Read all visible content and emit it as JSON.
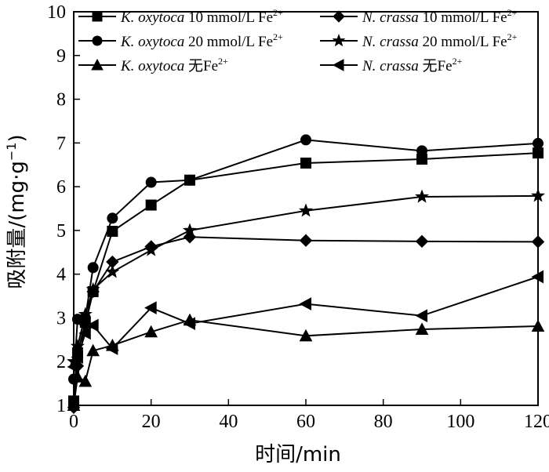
{
  "chart_data": {
    "type": "line",
    "xlabel": "时间/min",
    "ylabel": "吸附量/(mg·g⁻¹)",
    "xlim": [
      0,
      120
    ],
    "ylim": [
      1,
      10
    ],
    "x_ticks": [
      0,
      20,
      40,
      60,
      80,
      100,
      120
    ],
    "y_ticks": [
      1,
      2,
      3,
      4,
      5,
      6,
      7,
      8,
      9,
      10
    ],
    "grid": false,
    "legend_position": "top-left",
    "series": [
      {
        "name": "K. oxytoca 10 mmol/L Fe²⁺",
        "marker": "square",
        "x": [
          0,
          1,
          3,
          5,
          10,
          20,
          30,
          60,
          90,
          120
        ],
        "y": [
          1.1,
          2.2,
          2.9,
          3.6,
          4.98,
          5.58,
          6.15,
          6.54,
          6.63,
          6.77
        ]
      },
      {
        "name": "K. oxytoca 20 mmol/L Fe²⁺",
        "marker": "circle",
        "x": [
          0,
          1,
          3,
          5,
          10,
          20,
          30,
          60,
          90,
          120
        ],
        "y": [
          1.6,
          2.97,
          3.0,
          4.15,
          5.28,
          6.1,
          6.15,
          7.07,
          6.82,
          6.99
        ]
      },
      {
        "name": "K. oxytoca 无Fe²⁺",
        "marker": "triangle-up",
        "x": [
          0,
          1,
          3,
          5,
          10,
          20,
          30,
          60,
          90,
          120
        ],
        "y": [
          1.0,
          1.65,
          1.55,
          2.25,
          2.37,
          2.68,
          2.95,
          2.59,
          2.74,
          2.81
        ]
      },
      {
        "name": "N. crassa 10 mmol/L Fe²⁺",
        "marker": "diamond",
        "x": [
          0,
          1,
          3,
          5,
          10,
          20,
          30,
          60,
          90,
          120
        ],
        "y": [
          0.95,
          1.9,
          2.85,
          3.6,
          4.28,
          4.63,
          4.85,
          4.77,
          4.75,
          4.74
        ]
      },
      {
        "name": "N. crassa 20 mmol/L Fe²⁺",
        "marker": "star",
        "x": [
          0,
          1,
          3,
          5,
          10,
          20,
          30,
          60,
          90,
          120
        ],
        "y": [
          2.0,
          2.35,
          3.08,
          3.65,
          4.05,
          4.55,
          5.0,
          5.45,
          5.77,
          5.79
        ]
      },
      {
        "name": "N. crassa 无Fe²⁺",
        "marker": "triangle-left",
        "x": [
          0,
          1,
          3,
          5,
          10,
          20,
          30,
          60,
          90,
          120
        ],
        "y": [
          1.88,
          2.1,
          2.65,
          2.83,
          2.3,
          3.23,
          2.87,
          3.32,
          3.05,
          3.94
        ]
      }
    ]
  },
  "legend_labels": [
    {
      "species": "K. oxytoca",
      "condition": " 10 mmol/L Fe",
      "sup": "2+"
    },
    {
      "species": "N. crassa",
      "condition": " 10 mmol/L Fe",
      "sup": "2+"
    },
    {
      "species": "K. oxytoca",
      "condition": " 20 mmol/L Fe",
      "sup": "2+"
    },
    {
      "species": "N. crassa",
      "condition": " 20 mmol/L Fe",
      "sup": "2+"
    },
    {
      "species": "K. oxytoca",
      "condition": " 无Fe",
      "sup": "2+"
    },
    {
      "species": "N. crassa",
      "condition": " 无Fe",
      "sup": "2+"
    }
  ],
  "axis_title_parts": {
    "y_main": "吸附量/(mg·g",
    "y_sup": "−1",
    "y_end": ")",
    "x": "时间/min"
  }
}
